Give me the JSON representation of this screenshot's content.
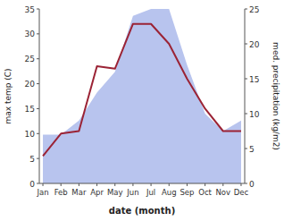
{
  "chart_data": {
    "type": "line",
    "x_label": "date (month)",
    "y_label": "max temp (C)",
    "y2_label": "med. precipitation (kg/m2)",
    "categories": [
      "Jan",
      "Feb",
      "Mar",
      "Apr",
      "May",
      "Jun",
      "Jul",
      "Aug",
      "Sep",
      "Oct",
      "Nov",
      "Dec"
    ],
    "series": [
      {
        "type": "area",
        "axis": "y2",
        "color": "#b8c4ee",
        "values": [
          7,
          7,
          9,
          13,
          16,
          24,
          25,
          25,
          17,
          10,
          7.5,
          9
        ]
      },
      {
        "type": "line",
        "color": "#9b2335",
        "values": [
          5.5,
          10.0,
          10.5,
          23.5,
          23.0,
          32.0,
          32.0,
          28.0,
          21.0,
          15.0,
          10.5,
          10.5
        ]
      }
    ],
    "ylim": [
      0,
      35
    ],
    "yticks": [
      0,
      5,
      10,
      15,
      20,
      25,
      30,
      35
    ],
    "y2lim": [
      0,
      25
    ],
    "y2ticks": [
      0,
      5,
      10,
      15,
      20,
      25
    ],
    "grid": false
  }
}
